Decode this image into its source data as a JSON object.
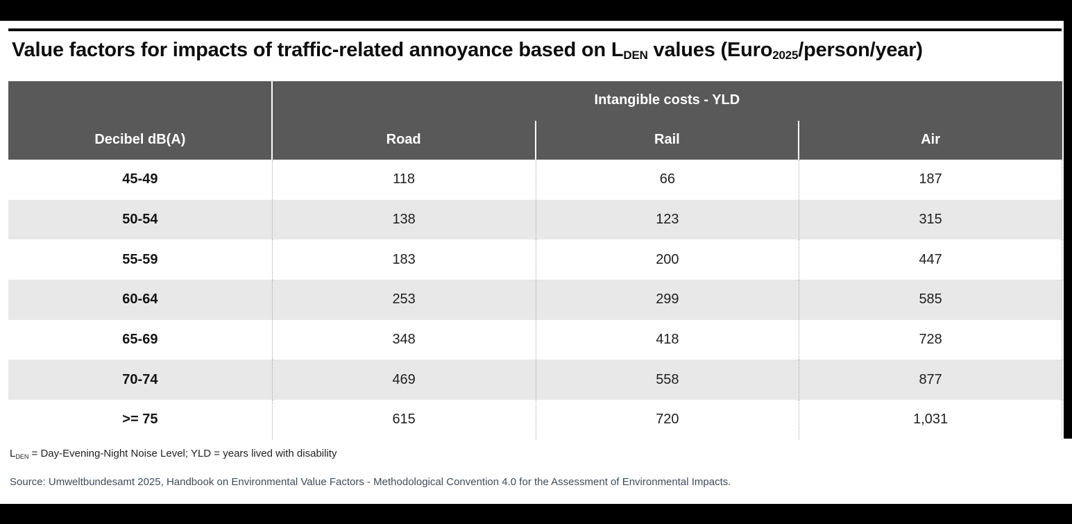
{
  "title": {
    "part1": "Value factors for impacts of traffic-related annoyance based on L",
    "sub1": "DEN",
    "part2": " values (Euro",
    "sub2": "2025",
    "part3": "/person/year)"
  },
  "table": {
    "span_header": "Intangible costs - YLD",
    "col1_header": "Decibel dB(A)",
    "columns": [
      "Road",
      "Rail",
      "Air"
    ],
    "rows": [
      {
        "label": "45-49",
        "values": [
          "118",
          "66",
          "187"
        ]
      },
      {
        "label": "50-54",
        "values": [
          "138",
          "123",
          "315"
        ]
      },
      {
        "label": "55-59",
        "values": [
          "183",
          "200",
          "447"
        ]
      },
      {
        "label": "60-64",
        "values": [
          "253",
          "299",
          "585"
        ]
      },
      {
        "label": "65-69",
        "values": [
          "348",
          "418",
          "728"
        ]
      },
      {
        "label": "70-74",
        "values": [
          "469",
          "558",
          "877"
        ]
      },
      {
        "label": ">= 75",
        "values": [
          "615",
          "720",
          "1,031"
        ]
      }
    ]
  },
  "footnote": {
    "part1": "L",
    "sub": "DEN",
    "part2": " = Day-Evening-Night Noise Level; YLD = years lived with disability"
  },
  "source": "Source: Umweltbundesamt 2025, Handbook on Environmental Value Factors - Methodological Convention 4.0 for the Assessment of Environmental Impacts.",
  "colors": {
    "header_bg": "#595959",
    "row_alt_bg": "#e8e8e8",
    "frame": "#000000",
    "source_text": "#404b57"
  }
}
